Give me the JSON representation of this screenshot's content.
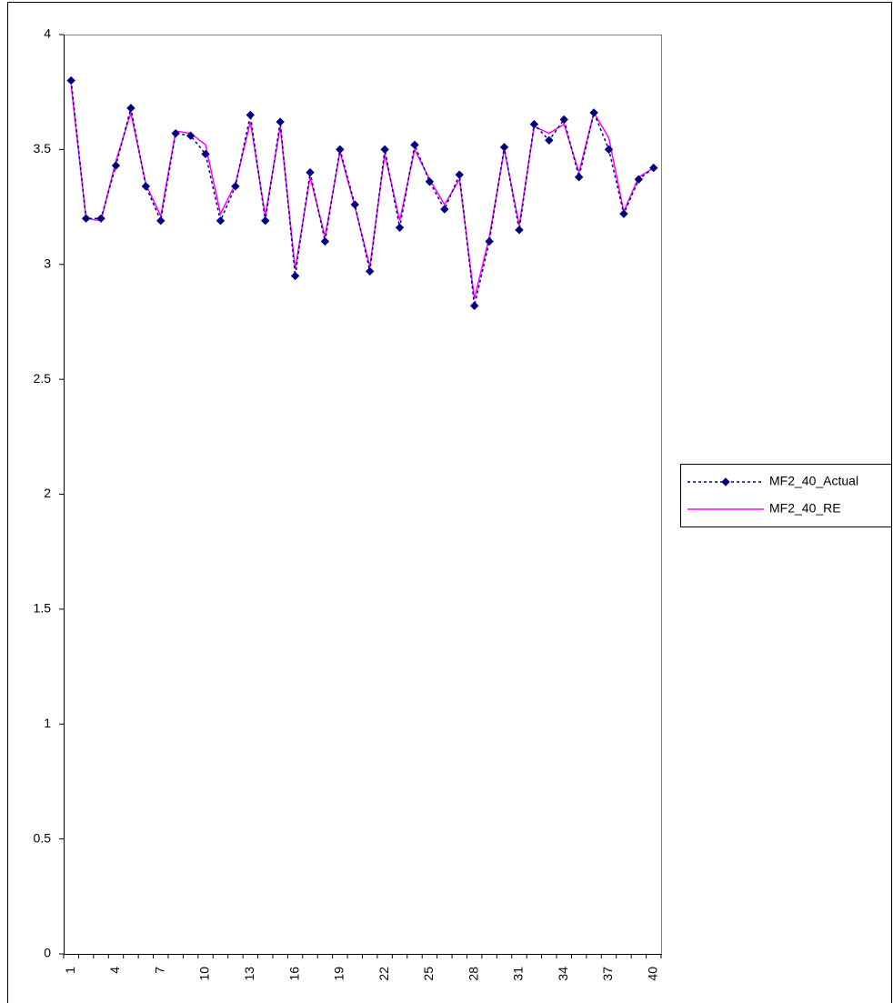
{
  "chart_data": {
    "type": "line",
    "categories": [
      "1",
      null,
      null,
      "4",
      null,
      null,
      "7",
      null,
      null,
      "10",
      null,
      null,
      "13",
      null,
      null,
      "16",
      null,
      null,
      "19",
      null,
      null,
      "22",
      null,
      null,
      "25",
      null,
      null,
      "28",
      null,
      null,
      "31",
      null,
      null,
      "34",
      null,
      null,
      "37",
      null,
      null,
      "40"
    ],
    "series": [
      {
        "name": "MF2_40_Actual",
        "color": "#000080",
        "line_style": "dotted",
        "marker": "diamond",
        "values": [
          3.8,
          3.2,
          3.2,
          3.43,
          3.68,
          3.34,
          3.19,
          3.57,
          3.56,
          3.48,
          3.19,
          3.34,
          3.65,
          3.19,
          3.62,
          2.95,
          3.4,
          3.1,
          3.5,
          3.26,
          2.97,
          3.5,
          3.16,
          3.52,
          3.36,
          3.24,
          3.39,
          2.82,
          3.1,
          3.51,
          3.15,
          3.61,
          3.54,
          3.63,
          3.38,
          3.66,
          3.5,
          3.22,
          3.37,
          3.42
        ]
      },
      {
        "name": "MF2_40_RE",
        "color": "#ff00ff",
        "line_style": "solid",
        "marker": "none",
        "values": [
          3.78,
          3.2,
          3.19,
          3.45,
          3.66,
          3.35,
          3.21,
          3.58,
          3.57,
          3.52,
          3.22,
          3.35,
          3.62,
          3.21,
          3.6,
          2.98,
          3.38,
          3.12,
          3.49,
          3.25,
          2.99,
          3.48,
          3.19,
          3.5,
          3.37,
          3.26,
          3.37,
          2.85,
          3.12,
          3.5,
          3.17,
          3.6,
          3.57,
          3.61,
          3.4,
          3.66,
          3.55,
          3.23,
          3.38,
          3.42
        ]
      }
    ],
    "ylim": [
      0,
      4
    ],
    "yticks": [
      0,
      0.5,
      1,
      1.5,
      2,
      2.5,
      3,
      3.5,
      4
    ],
    "grid": false,
    "legend": "right"
  }
}
